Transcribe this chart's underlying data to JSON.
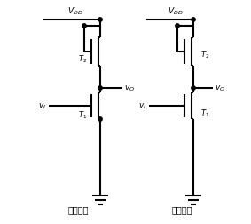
{
  "bg_color": "#ffffff",
  "line_color": "#000000",
  "line_width": 1.5,
  "labels": {
    "left_caption": "实际电路",
    "right_caption": "简化电路",
    "vdd_left": "$V_{DD}$",
    "vdd_right": "$V_{DD}$",
    "vo_left": "$v_O$",
    "vo_right": "$v_O$",
    "vi_left": "$v_I$",
    "vi_right": "$v_I$",
    "t1_left": "$T_1$",
    "t2_left": "$T_2$",
    "t1_right": "$T_1$",
    "t2_right": "$T_2$"
  }
}
